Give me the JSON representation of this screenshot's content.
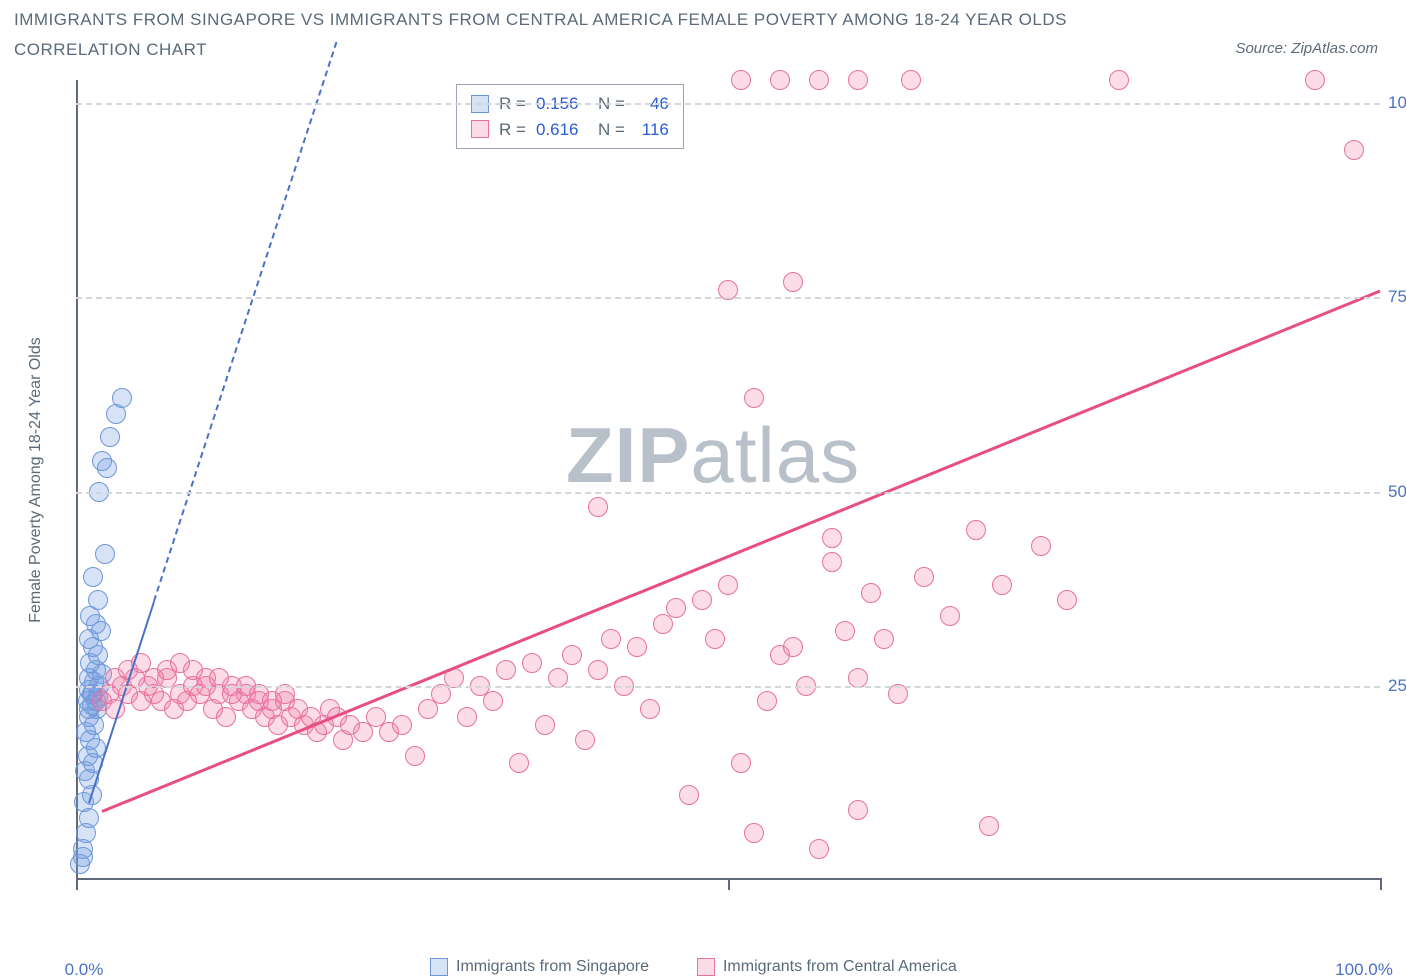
{
  "title_line1": "IMMIGRANTS FROM SINGAPORE VS IMMIGRANTS FROM CENTRAL AMERICA FEMALE POVERTY AMONG 18-24 YEAR OLDS",
  "title_line2": "CORRELATION CHART",
  "source": "Source: ZipAtlas.com",
  "ylabel": "Female Poverty Among 18-24 Year Olds",
  "watermark": {
    "zip": "ZIP",
    "atlas": "atlas"
  },
  "chart": {
    "type": "scatter",
    "xlim": [
      0,
      100
    ],
    "ylim": [
      0,
      103
    ],
    "xtick_positions": [
      0,
      50,
      100
    ],
    "xtick_labels": [
      "0.0%",
      "",
      "100.0%"
    ],
    "ytick_positions": [
      25,
      50,
      75,
      100
    ],
    "ytick_labels": [
      "25.0%",
      "50.0%",
      "75.0%",
      "100.0%"
    ],
    "grid_color": "#d3d6da",
    "axis_color": "#606a78",
    "background_color": "#ffffff",
    "marker_radius": 10,
    "marker_stroke_width": 1.5,
    "series": [
      {
        "name": "Immigrants from Singapore",
        "key": "singapore",
        "color_fill": "rgba(120,160,225,0.30)",
        "color_stroke": "#6f97d8",
        "R": "0.156",
        "N": "46",
        "trend": {
          "x1": 1,
          "y1": 10,
          "x2": 6,
          "y2": 36,
          "style": "solid",
          "ext_x2": 20,
          "ext_y2": 108,
          "ext_style": "dashed",
          "color": "#4a72c4",
          "width": 2
        },
        "points": [
          [
            0.3,
            2
          ],
          [
            0.5,
            3
          ],
          [
            0.5,
            4
          ],
          [
            0.8,
            6
          ],
          [
            1.0,
            8
          ],
          [
            0.6,
            10
          ],
          [
            1.2,
            11
          ],
          [
            1.0,
            13
          ],
          [
            0.7,
            14
          ],
          [
            1.3,
            15
          ],
          [
            0.9,
            16
          ],
          [
            1.5,
            17
          ],
          [
            1.1,
            18
          ],
          [
            0.8,
            19
          ],
          [
            1.4,
            20
          ],
          [
            1.0,
            21
          ],
          [
            1.6,
            22
          ],
          [
            1.2,
            22.5
          ],
          [
            0.9,
            23
          ],
          [
            1.7,
            23.5
          ],
          [
            1.3,
            24
          ],
          [
            1.0,
            24.5
          ],
          [
            1.8,
            25
          ],
          [
            1.4,
            25.5
          ],
          [
            1.0,
            26
          ],
          [
            2.0,
            26.5
          ],
          [
            1.5,
            27
          ],
          [
            1.1,
            28
          ],
          [
            1.7,
            29
          ],
          [
            1.3,
            30
          ],
          [
            1.0,
            31
          ],
          [
            1.9,
            32
          ],
          [
            1.5,
            33
          ],
          [
            1.1,
            34
          ],
          [
            1.7,
            36
          ],
          [
            1.3,
            39
          ],
          [
            2.2,
            42
          ],
          [
            1.8,
            50
          ],
          [
            2.4,
            53
          ],
          [
            2.0,
            54
          ],
          [
            2.6,
            57
          ],
          [
            3.1,
            60
          ],
          [
            3.5,
            62
          ],
          [
            1.5,
            23
          ],
          [
            1.2,
            24
          ],
          [
            1.0,
            22
          ]
        ]
      },
      {
        "name": "Immigrants from Central America",
        "key": "central-america",
        "color_fill": "rgba(240,130,170,0.28)",
        "color_stroke": "#e8719e",
        "R": "0.616",
        "N": "116",
        "trend": {
          "x1": 2,
          "y1": 9,
          "x2": 100,
          "y2": 76,
          "style": "solid",
          "color": "#e84d84",
          "width": 3
        },
        "points": [
          [
            2,
            23
          ],
          [
            2.5,
            24
          ],
          [
            3,
            22
          ],
          [
            3.5,
            25
          ],
          [
            4,
            24
          ],
          [
            4.5,
            26
          ],
          [
            5,
            23
          ],
          [
            5.5,
            25
          ],
          [
            6,
            24
          ],
          [
            6.5,
            23
          ],
          [
            7,
            26
          ],
          [
            7.5,
            22
          ],
          [
            8,
            24
          ],
          [
            8.5,
            23
          ],
          [
            9,
            25
          ],
          [
            9.5,
            24
          ],
          [
            10,
            26
          ],
          [
            10.5,
            22
          ],
          [
            11,
            24
          ],
          [
            11.5,
            21
          ],
          [
            12,
            25
          ],
          [
            12.5,
            23
          ],
          [
            13,
            24
          ],
          [
            13.5,
            22
          ],
          [
            14,
            23
          ],
          [
            14.5,
            21
          ],
          [
            15,
            22
          ],
          [
            15.5,
            20
          ],
          [
            16,
            23
          ],
          [
            16.5,
            21
          ],
          [
            17,
            22
          ],
          [
            17.5,
            20
          ],
          [
            18,
            21
          ],
          [
            18.5,
            19
          ],
          [
            19,
            20
          ],
          [
            19.5,
            22
          ],
          [
            20,
            21
          ],
          [
            20.5,
            18
          ],
          [
            21,
            20
          ],
          [
            22,
            19
          ],
          [
            23,
            21
          ],
          [
            24,
            19
          ],
          [
            25,
            20
          ],
          [
            26,
            16
          ],
          [
            27,
            22
          ],
          [
            28,
            24
          ],
          [
            29,
            26
          ],
          [
            30,
            21
          ],
          [
            31,
            25
          ],
          [
            32,
            23
          ],
          [
            33,
            27
          ],
          [
            34,
            15
          ],
          [
            35,
            28
          ],
          [
            36,
            20
          ],
          [
            37,
            26
          ],
          [
            38,
            29
          ],
          [
            39,
            18
          ],
          [
            40,
            27
          ],
          [
            41,
            31
          ],
          [
            42,
            25
          ],
          [
            43,
            30
          ],
          [
            44,
            22
          ],
          [
            45,
            33
          ],
          [
            46,
            35
          ],
          [
            47,
            11
          ],
          [
            48,
            36
          ],
          [
            49,
            31
          ],
          [
            50,
            38
          ],
          [
            51,
            15
          ],
          [
            52,
            62
          ],
          [
            53,
            23
          ],
          [
            54,
            29
          ],
          [
            50,
            76
          ],
          [
            55,
            77
          ],
          [
            55,
            30
          ],
          [
            56,
            25
          ],
          [
            58,
            44
          ],
          [
            59,
            32
          ],
          [
            60,
            26
          ],
          [
            61,
            37
          ],
          [
            62,
            31
          ],
          [
            63,
            24
          ],
          [
            40,
            48
          ],
          [
            51,
            103
          ],
          [
            54,
            103
          ],
          [
            57,
            103
          ],
          [
            60,
            103
          ],
          [
            64,
            103
          ],
          [
            65,
            39
          ],
          [
            52,
            6
          ],
          [
            57,
            4
          ],
          [
            60,
            9
          ],
          [
            70,
            7
          ],
          [
            58,
            41
          ],
          [
            67,
            34
          ],
          [
            69,
            45
          ],
          [
            71,
            38
          ],
          [
            74,
            43
          ],
          [
            76,
            36
          ],
          [
            80,
            103
          ],
          [
            95,
            103
          ],
          [
            98,
            94
          ],
          [
            3,
            26
          ],
          [
            4,
            27
          ],
          [
            5,
            28
          ],
          [
            6,
            26
          ],
          [
            7,
            27
          ],
          [
            8,
            28
          ],
          [
            9,
            27
          ],
          [
            10,
            25
          ],
          [
            11,
            26
          ],
          [
            12,
            24
          ],
          [
            13,
            25
          ],
          [
            14,
            24
          ],
          [
            15,
            23
          ],
          [
            16,
            24
          ]
        ]
      }
    ]
  },
  "legend_box": {
    "rows": [
      {
        "swatch": "singapore",
        "R_label": "R =",
        "R_val": "0.156",
        "N_label": "N =",
        "N_val": "46"
      },
      {
        "swatch": "central-america",
        "R_label": "R =",
        "R_val": "0.616",
        "N_label": "N =",
        "N_val": "116"
      }
    ]
  },
  "bottom_legend": [
    {
      "swatch": "singapore",
      "label": "Immigrants from Singapore"
    },
    {
      "swatch": "central-america",
      "label": "Immigrants from Central America"
    }
  ]
}
